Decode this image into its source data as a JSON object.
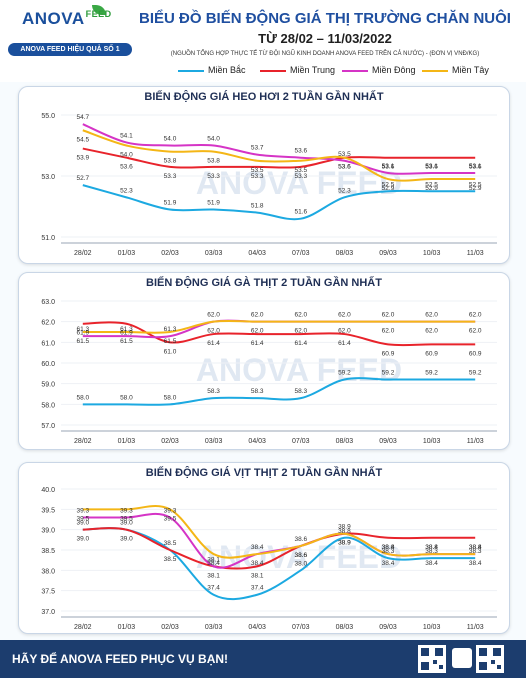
{
  "header": {
    "logo_text": "ANOVA",
    "logo_sup": "FEED",
    "logo_tagline": "ANOVA FEED HIỆU QUẢ SỐ 1",
    "title": "BIỂU ĐỒ BIẾN ĐỘNG GIÁ THỊ TRƯỜNG CHĂN NUÔI",
    "subtitle": "TỪ 28/02 – 11/03/2022",
    "source": "(NGUỒN TỔNG HỢP THỰC TẾ TỪ ĐỘI NGŨ KINH DOANH ANOVA FEED TRÊN CẢ NƯỚC)   -   (ĐƠN VỊ VNĐ/KG)"
  },
  "legend": [
    {
      "name": "Miền Bắc",
      "color": "#1ca9e1"
    },
    {
      "name": "Miền Trung",
      "color": "#e8232b"
    },
    {
      "name": "Miền Đông",
      "color": "#d534c6"
    },
    {
      "name": "Miền Tây",
      "color": "#f4b616"
    }
  ],
  "watermark": "ANOVA FEED",
  "footer": {
    "text": "HÃY ĐỂ ANOVA FEED PHỤC VỤ BẠN!"
  },
  "chart_data": [
    {
      "type": "line",
      "title": "BIẾN ĐỘNG GIÁ HEO HƠI 2 TUẦN GẦN NHẤT",
      "categories": [
        "28/02",
        "01/03",
        "02/03",
        "03/03",
        "04/03",
        "07/03",
        "08/03",
        "09/03",
        "10/03",
        "11/03"
      ],
      "ylim": [
        51.0,
        55.0
      ],
      "yticks": [
        "51.0",
        "53.0",
        "55.0"
      ],
      "series": [
        {
          "name": "Miền Bắc",
          "values": [
            52.7,
            52.3,
            51.9,
            51.9,
            51.8,
            51.6,
            52.3,
            52.5,
            52.5,
            52.5
          ]
        },
        {
          "name": "Miền Trung",
          "values": [
            53.9,
            53.6,
            53.3,
            53.3,
            53.3,
            53.3,
            53.6,
            53.6,
            53.6,
            53.6
          ]
        },
        {
          "name": "Miền Đông",
          "values": [
            54.7,
            54.1,
            54.0,
            54.0,
            53.7,
            53.6,
            53.5,
            53.1,
            53.1,
            53.1
          ]
        },
        {
          "name": "Miền Tây",
          "values": [
            54.5,
            54.0,
            53.8,
            53.8,
            53.5,
            53.5,
            53.6,
            52.9,
            52.9,
            52.9
          ]
        }
      ]
    },
    {
      "type": "line",
      "title": "BIẾN ĐỘNG GIÁ GÀ THỊT 2 TUẦN GẦN NHẤT",
      "categories": [
        "28/02",
        "01/03",
        "02/03",
        "03/03",
        "04/03",
        "07/03",
        "08/03",
        "09/03",
        "10/03",
        "11/03"
      ],
      "ylim": [
        57.0,
        63.0
      ],
      "yticks": [
        "57.0",
        "58.0",
        "59.0",
        "60.0",
        "61.0",
        "62.0",
        "63.0"
      ],
      "series": [
        {
          "name": "Miền Bắc",
          "values": [
            58.0,
            58.0,
            58.0,
            58.3,
            58.3,
            58.3,
            59.2,
            59.2,
            59.2,
            59.2
          ]
        },
        {
          "name": "Miền Trung",
          "values": [
            61.9,
            61.9,
            61.0,
            61.4,
            61.4,
            61.4,
            61.4,
            60.9,
            60.9,
            60.9
          ]
        },
        {
          "name": "Miền Đông",
          "values": [
            61.3,
            61.3,
            61.3,
            62.0,
            62.0,
            62.0,
            62.0,
            62.0,
            62.0,
            62.0
          ]
        },
        {
          "name": "Miền Tây",
          "values": [
            61.5,
            61.5,
            61.5,
            62.0,
            62.0,
            62.0,
            62.0,
            62.0,
            62.0,
            62.0
          ]
        }
      ]
    },
    {
      "type": "line",
      "title": "BIẾN ĐỘNG GIÁ VỊT THỊT 2 TUẦN GẦN NHẤT",
      "categories": [
        "28/02",
        "01/03",
        "02/03",
        "03/03",
        "04/03",
        "07/03",
        "08/03",
        "09/03",
        "10/03",
        "11/03"
      ],
      "ylim": [
        37.0,
        40.0
      ],
      "yticks": [
        "37.0",
        "37.5",
        "38.0",
        "38.5",
        "39.0",
        "39.5",
        "40.0"
      ],
      "series": [
        {
          "name": "Miền Bắc",
          "values": [
            39.0,
            39.0,
            38.5,
            37.4,
            37.4,
            38.0,
            38.8,
            38.3,
            38.3,
            38.3
          ]
        },
        {
          "name": "Miền Trung",
          "values": [
            39.0,
            39.0,
            38.5,
            38.1,
            38.1,
            38.6,
            38.9,
            38.8,
            38.8,
            38.8
          ]
        },
        {
          "name": "Miền Đông",
          "values": [
            39.3,
            39.3,
            39.3,
            38.1,
            38.4,
            38.6,
            38.9,
            38.4,
            38.4,
            38.4
          ]
        },
        {
          "name": "Miền Tây",
          "values": [
            39.5,
            39.5,
            39.5,
            38.4,
            38.4,
            38.6,
            38.9,
            38.4,
            38.4,
            38.4
          ]
        }
      ]
    }
  ]
}
